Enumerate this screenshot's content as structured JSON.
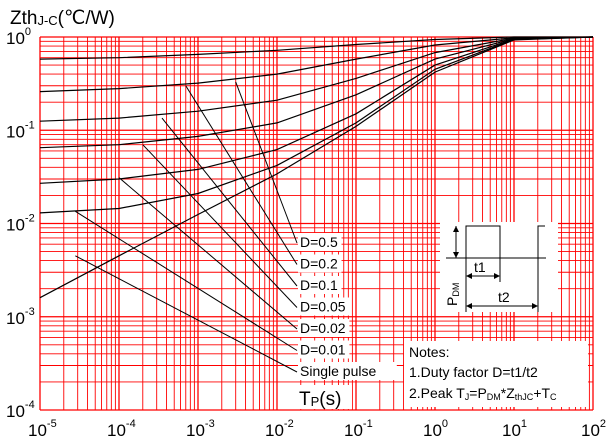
{
  "chart_data": {
    "type": "line",
    "title": "",
    "ylabel": {
      "main": "Zth",
      "sub": "J-C",
      "unit": "(℃/W)"
    },
    "xlabel": {
      "main": "T",
      "sub": "P",
      "unit": "(s)"
    },
    "xscale": "log",
    "yscale": "log",
    "xlim": [
      1e-05,
      100
    ],
    "ylim": [
      0.0001,
      1
    ],
    "grid": true,
    "grid_color": "#ff0000",
    "curve_color": "#000000",
    "x_ticks": [
      {
        "base": "10",
        "exp": "-5"
      },
      {
        "base": "10",
        "exp": "-4"
      },
      {
        "base": "10",
        "exp": "-3"
      },
      {
        "base": "10",
        "exp": "-2"
      },
      {
        "base": "10",
        "exp": "-1"
      },
      {
        "base": "10",
        "exp": "0"
      },
      {
        "base": "10",
        "exp": "1"
      },
      {
        "base": "10",
        "exp": "2"
      }
    ],
    "y_ticks": [
      {
        "base": "10",
        "exp": "0"
      },
      {
        "base": "10",
        "exp": "-1"
      },
      {
        "base": "10",
        "exp": "-2"
      },
      {
        "base": "10",
        "exp": "-3"
      },
      {
        "base": "10",
        "exp": "-4"
      }
    ],
    "series": [
      {
        "name": "D=0.5",
        "x": [
          1e-05,
          0.0001,
          0.001,
          0.01,
          0.1,
          1,
          10,
          100
        ],
        "y": [
          0.58,
          0.6,
          0.65,
          0.72,
          0.83,
          0.94,
          1.0,
          1.0
        ],
        "label_at": [
          0.003,
          0.33
        ]
      },
      {
        "name": "D=0.2",
        "x": [
          1e-05,
          0.0001,
          0.001,
          0.01,
          0.1,
          1,
          10,
          100
        ],
        "y": [
          0.26,
          0.28,
          0.32,
          0.4,
          0.58,
          0.82,
          0.98,
          1.0
        ],
        "label_at": [
          0.0007,
          0.3
        ]
      },
      {
        "name": "D=0.1",
        "x": [
          1e-05,
          0.0001,
          0.001,
          0.01,
          0.1,
          1,
          10,
          100
        ],
        "y": [
          0.125,
          0.135,
          0.16,
          0.21,
          0.36,
          0.68,
          0.97,
          1.0
        ],
        "label_at": [
          0.00035,
          0.135
        ]
      },
      {
        "name": "D=0.05",
        "x": [
          1e-05,
          0.0001,
          0.001,
          0.01,
          0.1,
          1,
          10,
          100
        ],
        "y": [
          0.065,
          0.07,
          0.086,
          0.12,
          0.24,
          0.58,
          0.96,
          1.0
        ],
        "label_at": [
          0.0002,
          0.07
        ]
      },
      {
        "name": "D=0.02",
        "x": [
          1e-05,
          0.0001,
          0.001,
          0.01,
          0.1,
          1,
          10,
          100
        ],
        "y": [
          0.027,
          0.03,
          0.038,
          0.062,
          0.15,
          0.5,
          0.95,
          1.0
        ],
        "label_at": [
          0.0001,
          0.031
        ]
      },
      {
        "name": "D=0.01",
        "x": [
          1e-05,
          0.0001,
          0.001,
          0.01,
          0.1,
          1,
          10,
          100
        ],
        "y": [
          0.013,
          0.0145,
          0.021,
          0.042,
          0.12,
          0.45,
          0.94,
          1.0
        ],
        "label_at": [
          2.8e-05,
          0.0135
        ]
      },
      {
        "name": "Single pulse",
        "x": [
          1e-05,
          0.0001,
          0.001,
          0.01,
          0.1,
          1,
          10,
          100
        ],
        "y": [
          0.0016,
          0.0045,
          0.0125,
          0.034,
          0.11,
          0.42,
          0.93,
          1.0
        ],
        "label_at": [
          2.8e-05,
          0.0045
        ]
      }
    ],
    "notes": {
      "title": "Notes:",
      "line1": "1.Duty factor D=t1/t2",
      "line2": {
        "t0": "2.Peak T",
        "s0": "J",
        "t1": "=P",
        "s1": "DM",
        "t2": "*Z",
        "s2": "thJC",
        "t3": "+T",
        "s3": "C"
      }
    },
    "pulse_diagram": {
      "amplitude_label": {
        "main": "P",
        "sub": "DM"
      },
      "t1_label": "t1",
      "t2_label": "t2"
    }
  }
}
